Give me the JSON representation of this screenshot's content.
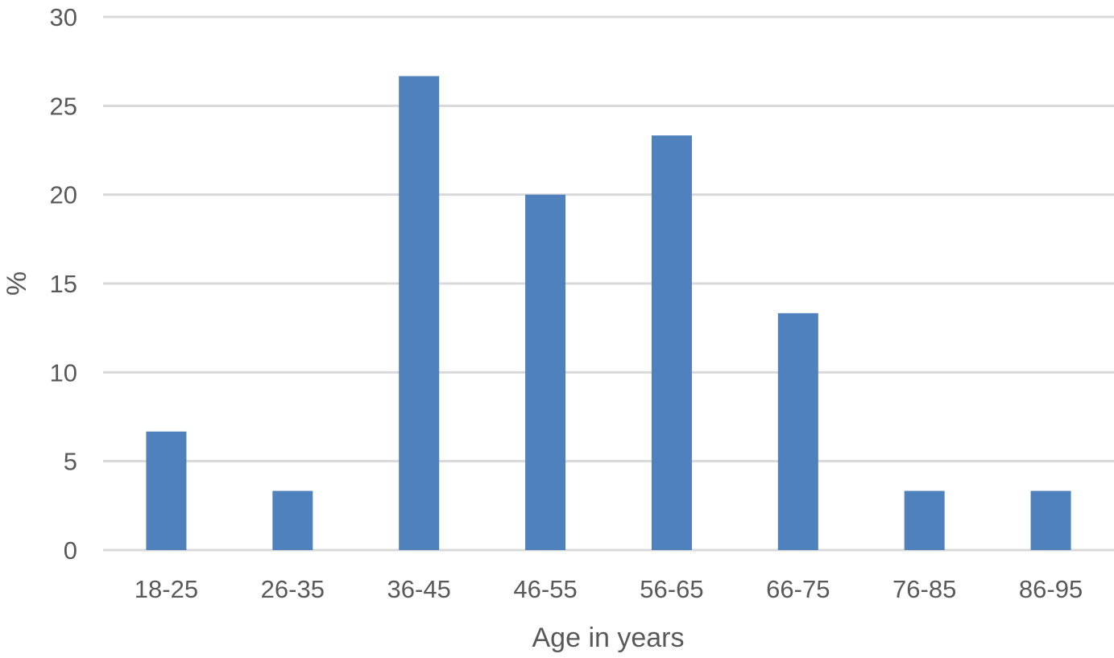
{
  "chart_data": {
    "type": "bar",
    "title": "",
    "xlabel": "Age in years",
    "ylabel": "%",
    "categories": [
      "18-25",
      "26-35",
      "36-45",
      "46-55",
      "56-65",
      "66-75",
      "76-85",
      "86-95"
    ],
    "values": [
      6.67,
      3.33,
      26.67,
      20.0,
      23.33,
      13.33,
      3.33,
      3.33
    ],
    "ylim": [
      0,
      30
    ],
    "yticks": [
      "0",
      "5",
      "10",
      "15",
      "20",
      "25",
      "30"
    ],
    "grid": true,
    "legend": "none",
    "bar_color": "#4f81bd",
    "grid_color": "#d9d9d9",
    "text_color": "#595959"
  }
}
